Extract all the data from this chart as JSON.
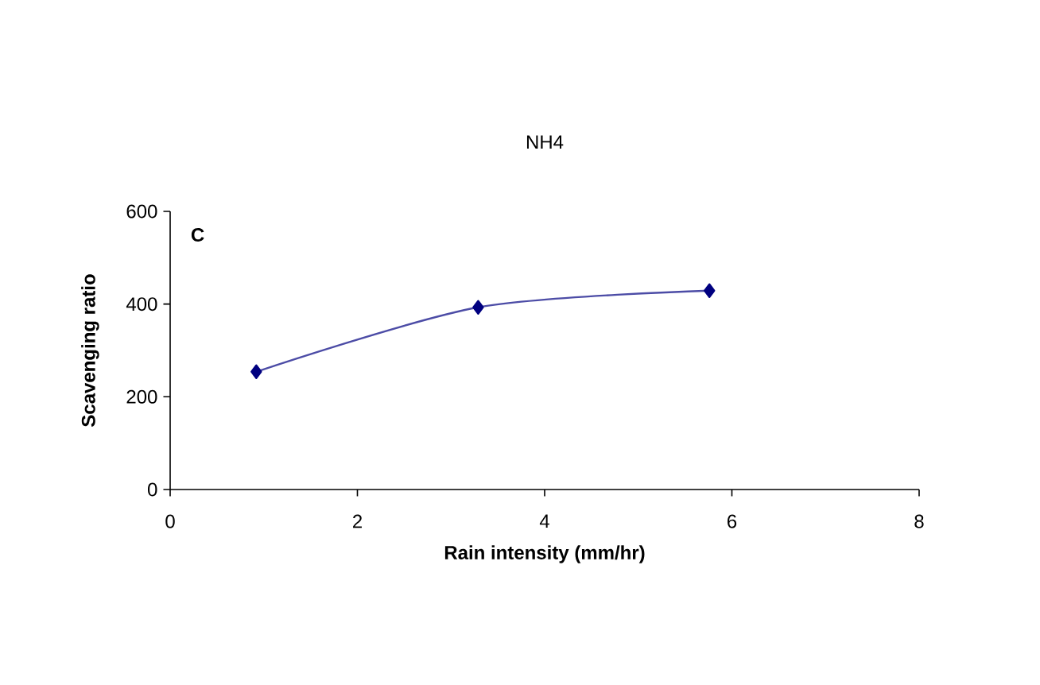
{
  "chart_data": {
    "type": "line",
    "title": "NH4",
    "xlabel": "Rain intensity (mm/hr)",
    "ylabel": "Scavenging ratio",
    "annotations": [
      "C"
    ],
    "x": [
      0.92,
      3.29,
      5.76
    ],
    "series": [
      {
        "color": "#000080",
        "values": [
          254,
          393,
          429
        ]
      }
    ],
    "xlim": [
      0,
      8
    ],
    "xticks": [
      0,
      2,
      4,
      6,
      8
    ],
    "ylim": [
      0,
      600
    ],
    "yticks": [
      0,
      200,
      400,
      600
    ],
    "marker": "diamond",
    "line_style": "solid"
  }
}
